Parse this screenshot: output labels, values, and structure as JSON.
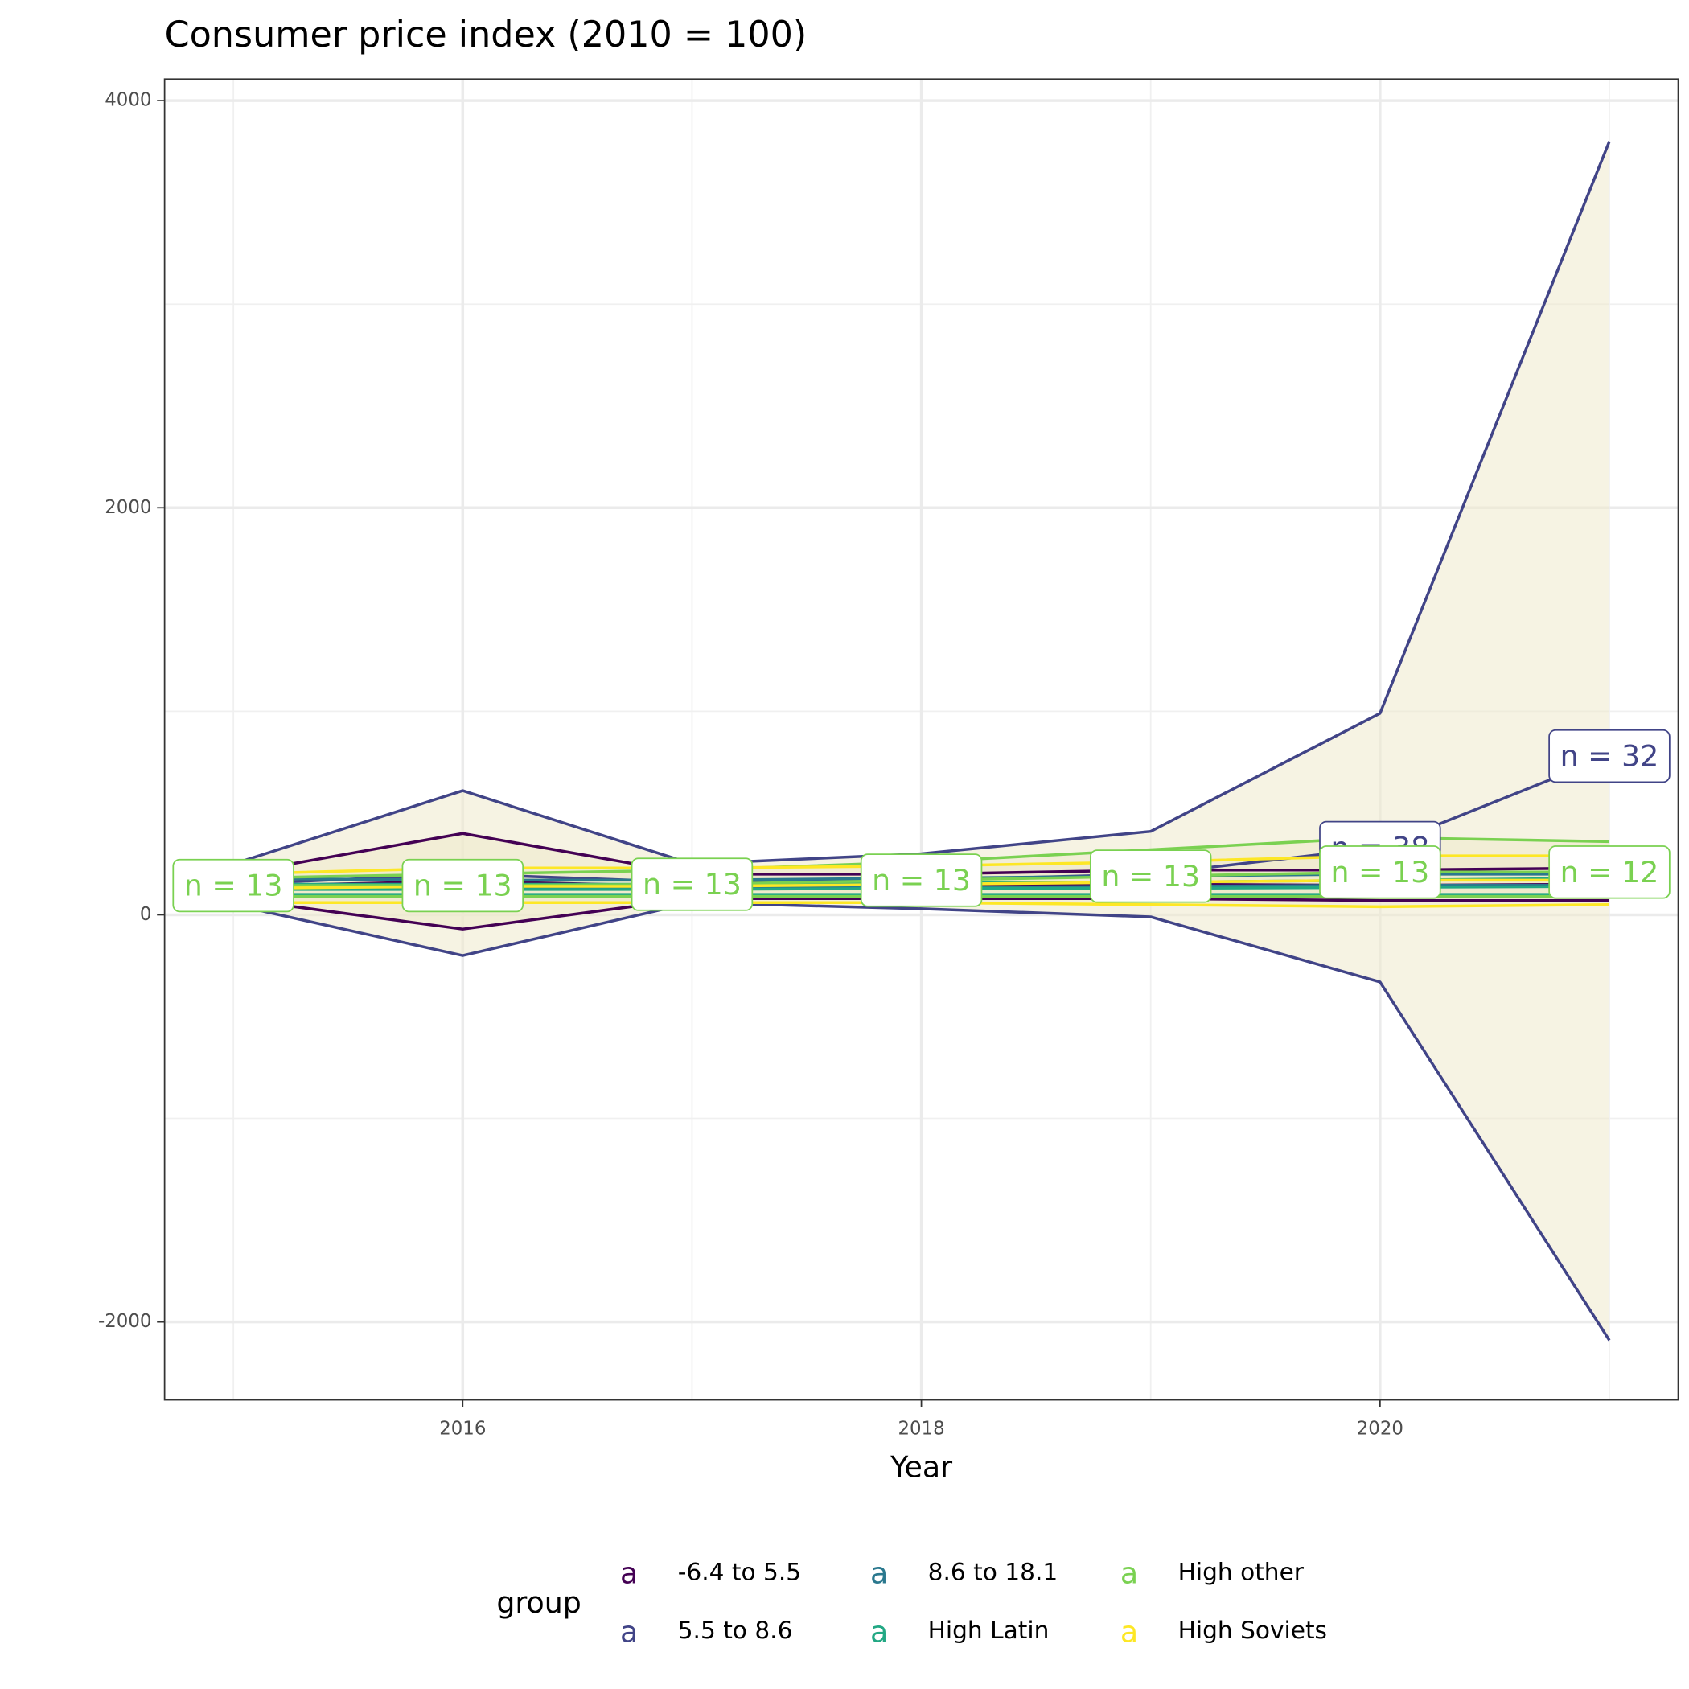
{
  "chart_data": {
    "type": "line",
    "title": "Consumer price index (2010 = 100)",
    "x_label": "Year",
    "x": [
      2015,
      2016,
      2017,
      2018,
      2019,
      2020,
      2021
    ],
    "xlim": [
      2014.7,
      2021.3
    ],
    "xticks": [
      2016,
      2018,
      2020
    ],
    "xminor": [
      2015,
      2017,
      2019,
      2021
    ],
    "ylim": [
      -2383,
      4106
    ],
    "yticks": [
      -2000,
      0,
      2000,
      4000
    ],
    "yminor": [
      -1000,
      1000,
      3000
    ],
    "grid": true,
    "ribbon_fill": "#efe9cc",
    "legend_title": "group",
    "legend_key": "a",
    "legend_position": "bottom",
    "series": [
      {
        "name": "-6.4 to 5.5",
        "color": "#440154",
        "upper": [
          200,
          400,
          200,
          200,
          220,
          220,
          230
        ],
        "lower": [
          80,
          -70,
          80,
          80,
          80,
          70,
          70
        ],
        "values": [
          140,
          165,
          140,
          140,
          150,
          145,
          150
        ],
        "n_labels": [
          null,
          null,
          null,
          null,
          null,
          null,
          null
        ]
      },
      {
        "name": "5.5 to 8.6",
        "color": "#414487",
        "upper": [
          250,
          610,
          250,
          300,
          410,
          990,
          3800
        ],
        "lower": [
          50,
          -200,
          60,
          30,
          -10,
          -330,
          -2090
        ],
        "values": [
          150,
          200,
          160,
          170,
          200,
          330,
          780
        ],
        "n_labels": [
          null,
          null,
          null,
          null,
          null,
          "n = 38",
          "n = 32"
        ]
      },
      {
        "name": "8.6 to 18.1",
        "color": "#2a788e",
        "upper": [
          180,
          170,
          170,
          180,
          190,
          200,
          200
        ],
        "lower": [
          90,
          90,
          90,
          90,
          90,
          90,
          90
        ],
        "values": [
          130,
          130,
          130,
          135,
          140,
          145,
          145
        ],
        "n_labels": [
          null,
          null,
          null,
          null,
          null,
          null,
          null
        ]
      },
      {
        "name": "High Latin",
        "color": "#22a884",
        "upper": [
          150,
          150,
          150,
          160,
          160,
          170,
          180
        ],
        "lower": [
          100,
          100,
          100,
          100,
          100,
          100,
          100
        ],
        "values": [
          125,
          125,
          125,
          130,
          130,
          135,
          140
        ],
        "n_labels": [
          null,
          null,
          null,
          null,
          null,
          null,
          null
        ]
      },
      {
        "name": "High other",
        "color": "#7ad151",
        "upper": [
          180,
          200,
          220,
          260,
          320,
          380,
          360
        ],
        "lower": [
          90,
          90,
          90,
          90,
          90,
          90,
          90
        ],
        "values": [
          144,
          144,
          150,
          170,
          190,
          210,
          210
        ],
        "n_labels": [
          "n = 13",
          "n = 13",
          "n = 13",
          "n = 13",
          "n = 13",
          "n = 13",
          "n = 12"
        ]
      },
      {
        "name": "High Soviets",
        "color": "#fde725",
        "upper": [
          200,
          230,
          230,
          240,
          260,
          290,
          290
        ],
        "lower": [
          60,
          60,
          60,
          60,
          50,
          40,
          50
        ],
        "values": [
          130,
          140,
          140,
          150,
          160,
          170,
          170
        ],
        "n_labels": [
          null,
          null,
          null,
          null,
          null,
          null,
          null
        ]
      }
    ]
  }
}
